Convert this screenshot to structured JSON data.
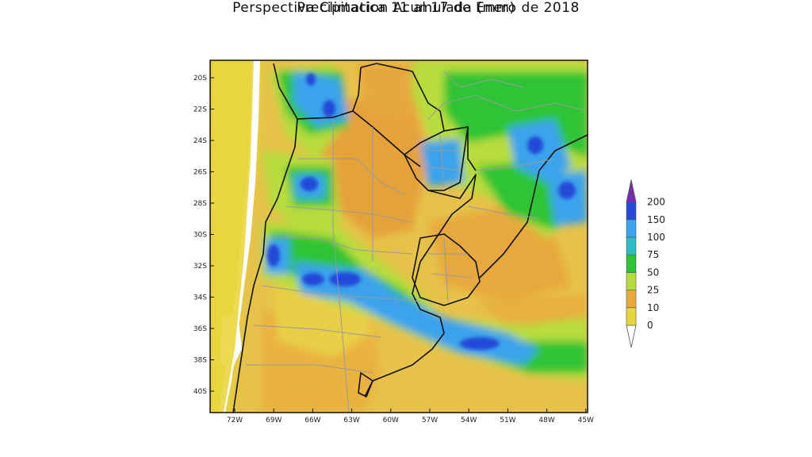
{
  "title": {
    "line1": "Perspectiva Climatica 11 al 17 de Enero de 2018",
    "line2": "Precipitacion Acumulada (mm)"
  },
  "map": {
    "lat_labels": [
      "20S",
      "22S",
      "24S",
      "26S",
      "28S",
      "30S",
      "32S",
      "34S",
      "36S",
      "38S",
      "40S"
    ],
    "lon_labels": [
      "72W",
      "69W",
      "66W",
      "63W",
      "60W",
      "57W",
      "54W",
      "51W",
      "48W",
      "45W"
    ]
  },
  "legend": {
    "levels": [
      "0",
      "10",
      "25",
      "50",
      "75",
      "100",
      "150",
      "200"
    ],
    "colors": [
      "#e6d53d",
      "#e9a93a",
      "#b7dc3e",
      "#2fc436",
      "#2bbcc4",
      "#3aa3ec",
      "#2448d8",
      "#7a2aa8"
    ]
  }
}
